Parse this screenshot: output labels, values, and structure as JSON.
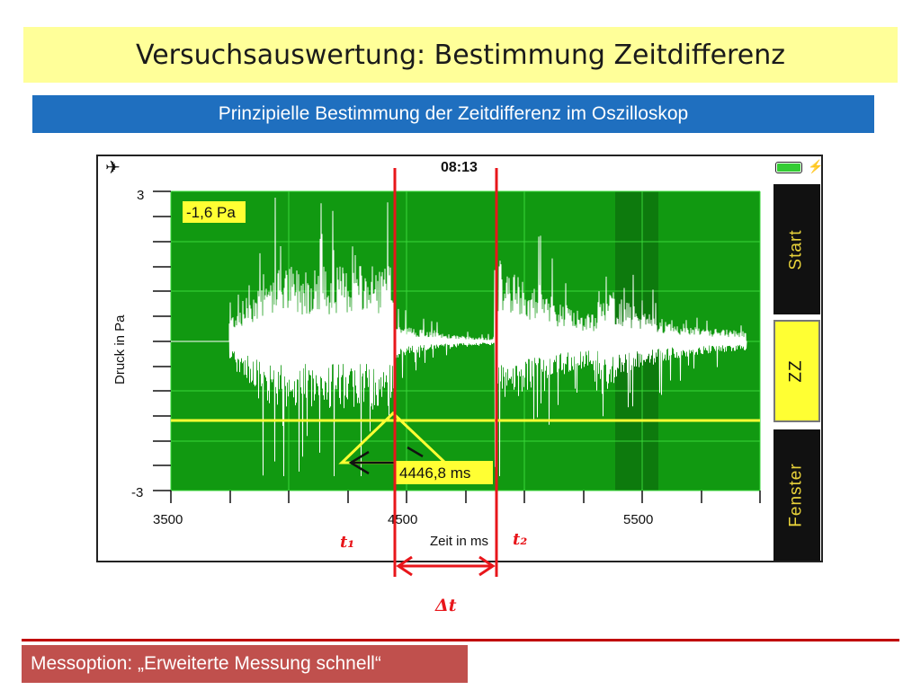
{
  "title": "Versuchsauswertung: Bestimmung Zeitdifferenz",
  "subtitle": "Prinzipielle Bestimmung der Zeitdifferenz im Oszilloskop",
  "phone": {
    "time": "08:13",
    "airplane_icon": "airplane-icon",
    "battery_icon": "battery-icon",
    "battery_level": 1.0,
    "buttons": [
      "Start",
      "ZZ",
      "Fenster"
    ]
  },
  "oscilloscope": {
    "y_axis_label": "Druck in Pa",
    "x_axis_label": "Zeit in ms",
    "y_ticks": [
      "3",
      "-3"
    ],
    "x_ticks": [
      "3500",
      "4500",
      "5500"
    ],
    "cursor_value": "-1,6 Pa",
    "delta_readout": "4446,8 ms",
    "plot_color": "#119911",
    "highlight_color": "#ffff33"
  },
  "annotations": {
    "t1": "t₁",
    "t2": "t₂",
    "delta": "Δt",
    "marker_color": "#e8161b"
  },
  "footer": "Messoption: „Erweiterte Messung schnell“"
}
